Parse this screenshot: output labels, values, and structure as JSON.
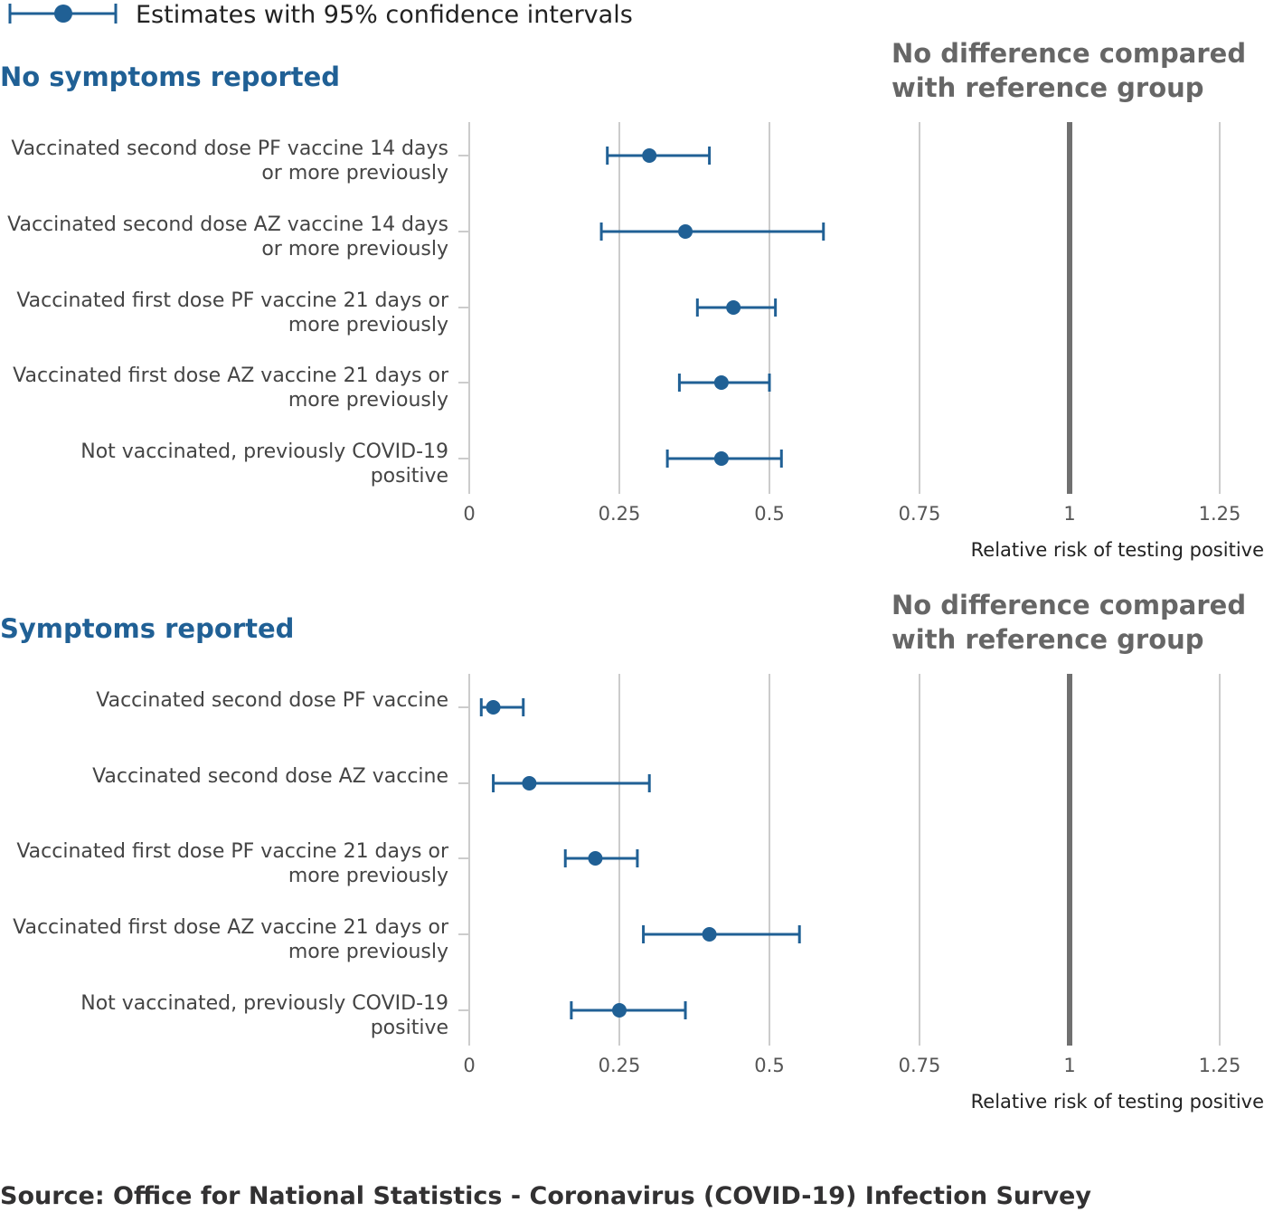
{
  "legend": {
    "label": "Estimates with 95% confidence intervals",
    "icon": "dot-with-error-bar-icon"
  },
  "source": "Source: Office for National Statistics - Coronavirus (COVID-19) Infection Survey",
  "colors": {
    "series": "#206095",
    "grid": "#cccccc",
    "reference_line": "#707070",
    "panel_title": "#206095",
    "reference_label": "#666666"
  },
  "chart_data": [
    {
      "type": "scatter",
      "subtype": "forest-plot",
      "title": "No symptoms reported",
      "reference_label": "No difference compared with reference group",
      "reference_label_lines": [
        "No difference compared",
        "with reference group"
      ],
      "reference_value": 1,
      "xlabel": "Relative risk of testing positive",
      "xlim": [
        0,
        1.3
      ],
      "xticks": [
        0,
        0.25,
        0.5,
        0.75,
        1,
        1.25
      ],
      "xtick_labels": [
        "0",
        "0.25",
        "0.5",
        "0.75",
        "1",
        "1.25"
      ],
      "grid": true,
      "categories": [
        [
          "Vaccinated second dose PF vaccine 14 days",
          "or more previously"
        ],
        [
          "Vaccinated second dose AZ vaccine 14 days",
          "or more previously"
        ],
        [
          "Vaccinated first dose PF vaccine 21 days or",
          "more previously"
        ],
        [
          "Vaccinated first dose AZ vaccine 21 days or",
          "more previously"
        ],
        [
          "Not vaccinated, previously COVID-19",
          "positive"
        ]
      ],
      "estimates": [
        0.3,
        0.36,
        0.44,
        0.42,
        0.42
      ],
      "lower": [
        0.23,
        0.22,
        0.38,
        0.35,
        0.33
      ],
      "upper": [
        0.4,
        0.59,
        0.51,
        0.5,
        0.52
      ]
    },
    {
      "type": "scatter",
      "subtype": "forest-plot",
      "title": "Symptoms reported",
      "reference_label": "No difference compared with reference group",
      "reference_label_lines": [
        "No difference compared",
        "with reference group"
      ],
      "reference_value": 1,
      "xlabel": "Relative risk of testing positive",
      "xlim": [
        0,
        1.3
      ],
      "xticks": [
        0,
        0.25,
        0.5,
        0.75,
        1,
        1.25
      ],
      "xtick_labels": [
        "0",
        "0.25",
        "0.5",
        "0.75",
        "1",
        "1.25"
      ],
      "grid": true,
      "categories": [
        [
          "Vaccinated second dose PF vaccine"
        ],
        [
          "Vaccinated second dose AZ vaccine"
        ],
        [
          "Vaccinated first dose PF vaccine 21 days or",
          "more previously"
        ],
        [
          "Vaccinated first dose AZ vaccine 21 days or",
          "more previously"
        ],
        [
          "Not vaccinated, previously COVID-19",
          "positive"
        ]
      ],
      "estimates": [
        0.04,
        0.1,
        0.21,
        0.4,
        0.25
      ],
      "lower": [
        0.02,
        0.04,
        0.16,
        0.29,
        0.17
      ],
      "upper": [
        0.09,
        0.3,
        0.28,
        0.55,
        0.36
      ]
    }
  ]
}
